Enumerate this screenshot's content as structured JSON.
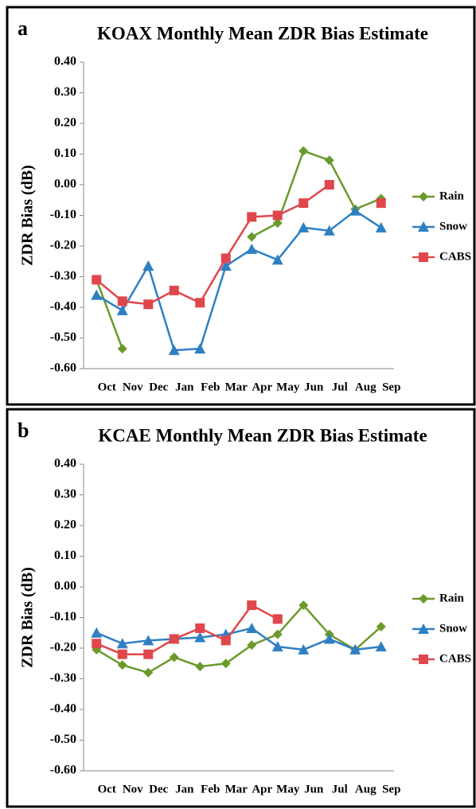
{
  "chart_data": [
    {
      "type": "line",
      "panel_label": "a",
      "title": "KOAX Monthly Mean ZDR Bias Estimate",
      "y_label": "ZDR Bias (dB)",
      "categories": [
        "Oct",
        "Nov",
        "Dec",
        "Jan",
        "Feb",
        "Mar",
        "Apr",
        "May",
        "Jun",
        "Jul",
        "Aug",
        "Sep"
      ],
      "ylim": [
        -0.6,
        0.4
      ],
      "yticks": [
        {
          "value": 0.4,
          "label": "0.40"
        },
        {
          "value": 0.3,
          "label": "0.30"
        },
        {
          "value": 0.2,
          "label": "0.20"
        },
        {
          "value": 0.1,
          "label": "0.10"
        },
        {
          "value": 0,
          "label": "0.00"
        },
        {
          "value": -0.1,
          "label": "-0.10"
        },
        {
          "value": -0.2,
          "label": "-0.20"
        },
        {
          "value": -0.3,
          "label": "-0.30"
        },
        {
          "value": -0.4,
          "label": "-0.40"
        },
        {
          "value": -0.5,
          "label": "-0.50"
        },
        {
          "value": -0.6,
          "label": "-0.60"
        }
      ],
      "grid": false,
      "series": [
        {
          "name": "Rain",
          "color": "#6b9a2c",
          "marker": "diamond",
          "values": [
            -0.31,
            -0.535,
            null,
            null,
            null,
            null,
            -0.17,
            -0.125,
            0.11,
            0.08,
            -0.08,
            -0.045
          ]
        },
        {
          "name": "Snow",
          "color": "#2f80c3",
          "marker": "triangle",
          "values": [
            -0.36,
            -0.41,
            -0.265,
            -0.54,
            -0.535,
            -0.265,
            -0.21,
            -0.245,
            -0.14,
            -0.15,
            -0.085,
            -0.14
          ]
        },
        {
          "name": "CABS",
          "color": "#e0474c",
          "marker": "square",
          "values": [
            -0.31,
            -0.38,
            -0.39,
            -0.345,
            -0.385,
            -0.24,
            -0.105,
            -0.1,
            -0.06,
            0.0,
            null,
            -0.06
          ]
        }
      ]
    },
    {
      "type": "line",
      "panel_label": "b",
      "title": "KCAE Monthly Mean ZDR Bias Estimate",
      "y_label": "ZDR Bias (dB)",
      "categories": [
        "Oct",
        "Nov",
        "Dec",
        "Jan",
        "Feb",
        "Mar",
        "Apr",
        "May",
        "Jun",
        "Jul",
        "Aug",
        "Sep"
      ],
      "ylim": [
        -0.6,
        0.4
      ],
      "yticks": [
        {
          "value": 0.4,
          "label": "0.40"
        },
        {
          "value": 0.3,
          "label": "0.30"
        },
        {
          "value": 0.2,
          "label": "0.20"
        },
        {
          "value": 0.1,
          "label": "0.10"
        },
        {
          "value": 0,
          "label": "0.00"
        },
        {
          "value": -0.1,
          "label": "-0.10"
        },
        {
          "value": -0.2,
          "label": "-0.20"
        },
        {
          "value": -0.3,
          "label": "-0.30"
        },
        {
          "value": -0.4,
          "label": "-0.40"
        },
        {
          "value": -0.5,
          "label": "-0.50"
        },
        {
          "value": -0.6,
          "label": "-0.60"
        }
      ],
      "grid": false,
      "series": [
        {
          "name": "Rain",
          "color": "#6b9a2c",
          "marker": "diamond",
          "values": [
            -0.205,
            -0.255,
            -0.28,
            -0.23,
            -0.26,
            -0.25,
            -0.19,
            -0.155,
            -0.06,
            -0.155,
            -0.205,
            -0.13
          ]
        },
        {
          "name": "Snow",
          "color": "#2f80c3",
          "marker": "triangle",
          "values": [
            -0.15,
            -0.185,
            -0.175,
            -0.17,
            -0.165,
            -0.155,
            -0.135,
            -0.195,
            -0.205,
            -0.17,
            -0.205,
            -0.195
          ]
        },
        {
          "name": "CABS",
          "color": "#e0474c",
          "marker": "square",
          "values": [
            -0.185,
            -0.22,
            -0.22,
            -0.17,
            -0.135,
            -0.175,
            -0.06,
            -0.105,
            null,
            null,
            null,
            null
          ]
        }
      ]
    }
  ]
}
